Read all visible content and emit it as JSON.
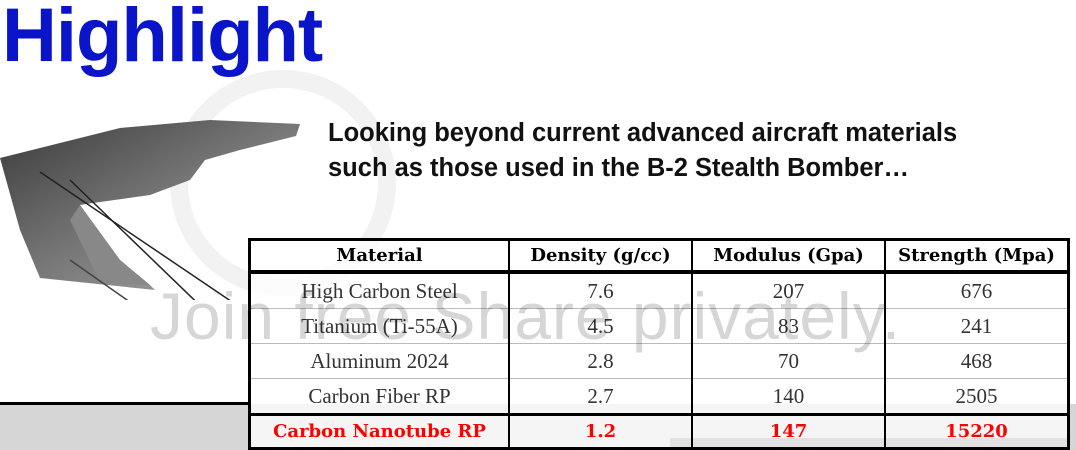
{
  "title": "Highlight",
  "subtitle": [
    "Looking beyond current advanced aircraft materials",
    "such as those used in the B-2 Stealth Bomber…"
  ],
  "watermark": "Join free Share privately.",
  "table": {
    "headers": [
      "Material",
      "Density (g/cc)",
      "Modulus (Gpa)",
      "Strength (Mpa)"
    ],
    "rows": [
      [
        "High Carbon Steel",
        "7.6",
        "207",
        "676"
      ],
      [
        "Titanium (Ti-55A)",
        "4.5",
        "83",
        "241"
      ],
      [
        "Aluminum 2024",
        "2.8",
        "70",
        "468"
      ],
      [
        "Carbon Fiber RP",
        "2.7",
        "140",
        "2505"
      ]
    ],
    "highlight_row": [
      "Carbon Nanotube RP",
      "1.2",
      "147",
      "15220"
    ],
    "highlight_color": "#ff0000"
  },
  "colors": {
    "title": "#0a14c8"
  }
}
